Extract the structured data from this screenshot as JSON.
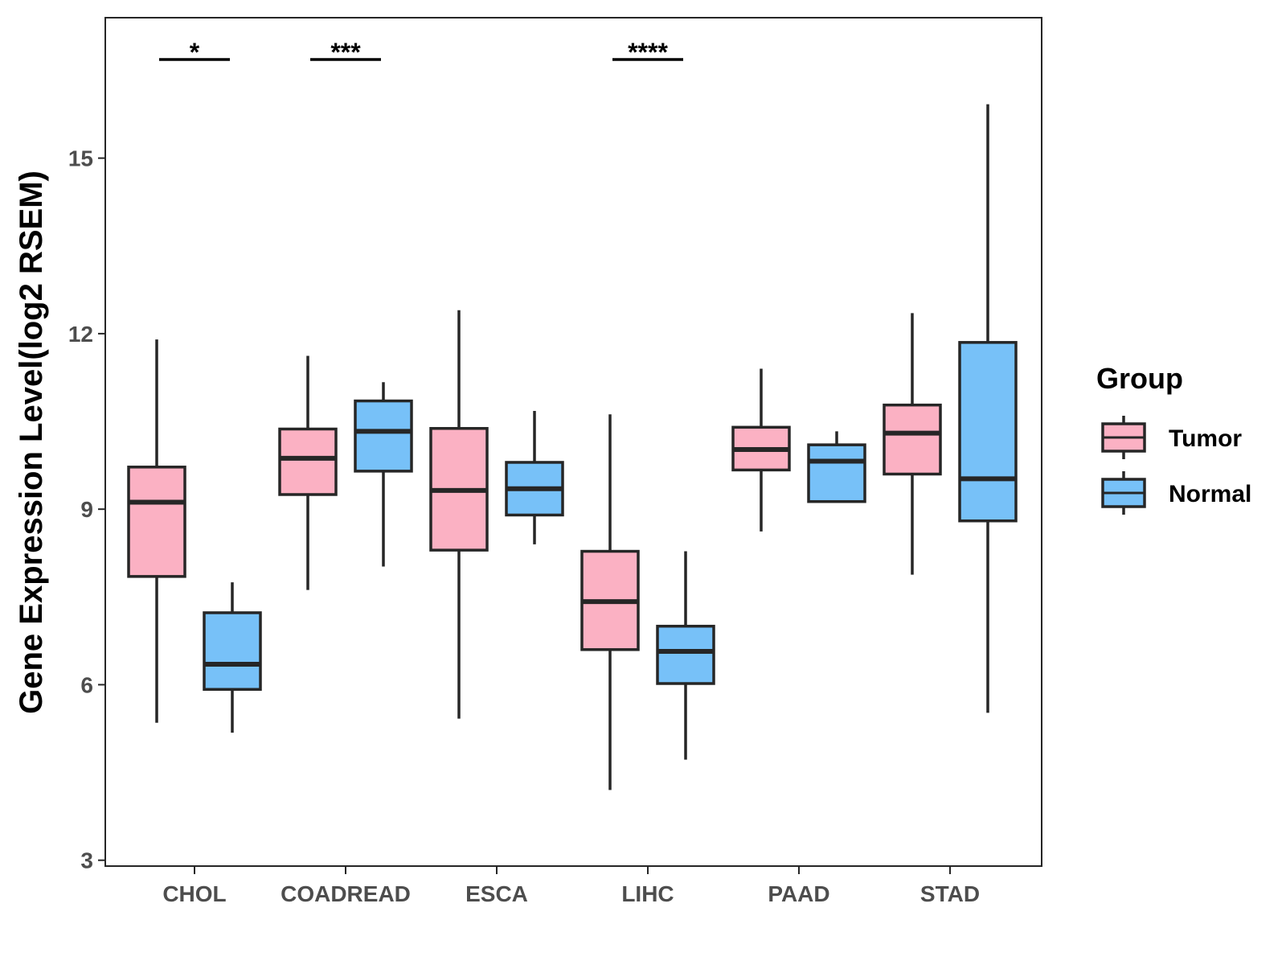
{
  "chart_data": {
    "type": "boxplot",
    "title": "",
    "xlabel": "",
    "ylabel": "Gene Expression Level(log2 RSEM)",
    "ylim": [
      2.9,
      17.4
    ],
    "yticks": [
      3,
      6,
      9,
      12,
      15
    ],
    "categories": [
      "CHOL",
      "COADREAD",
      "ESCA",
      "LIHC",
      "PAAD",
      "STAD"
    ],
    "legend": {
      "title": "Group",
      "position": "right",
      "entries": [
        "Tumor",
        "Normal"
      ]
    },
    "series": [
      {
        "name": "Tumor",
        "color": "#FBB1C3",
        "boxes": [
          {
            "category": "CHOL",
            "min": 5.35,
            "q1": 7.85,
            "median": 9.12,
            "q3": 9.72,
            "max": 11.9
          },
          {
            "category": "COADREAD",
            "min": 7.62,
            "q1": 9.25,
            "median": 9.87,
            "q3": 10.37,
            "max": 11.62
          },
          {
            "category": "ESCA",
            "min": 5.42,
            "q1": 8.3,
            "median": 9.32,
            "q3": 10.38,
            "max": 12.4
          },
          {
            "category": "LIHC",
            "min": 4.2,
            "q1": 6.6,
            "median": 7.42,
            "q3": 8.28,
            "max": 10.62
          },
          {
            "category": "PAAD",
            "min": 8.62,
            "q1": 9.67,
            "median": 10.02,
            "q3": 10.4,
            "max": 11.4
          },
          {
            "category": "STAD",
            "min": 7.88,
            "q1": 9.6,
            "median": 10.3,
            "q3": 10.78,
            "max": 12.35
          }
        ]
      },
      {
        "name": "Normal",
        "color": "#77C1F8",
        "boxes": [
          {
            "category": "CHOL",
            "min": 5.18,
            "q1": 5.92,
            "median": 6.35,
            "q3": 7.23,
            "max": 7.75
          },
          {
            "category": "COADREAD",
            "min": 8.02,
            "q1": 9.65,
            "median": 10.33,
            "q3": 10.85,
            "max": 11.17
          },
          {
            "category": "ESCA",
            "min": 8.4,
            "q1": 8.9,
            "median": 9.35,
            "q3": 9.8,
            "max": 10.68
          },
          {
            "category": "LIHC",
            "min": 4.72,
            "q1": 6.02,
            "median": 6.57,
            "q3": 7.0,
            "max": 8.28
          },
          {
            "category": "PAAD",
            "min": 9.13,
            "q1": 9.13,
            "median": 9.82,
            "q3": 10.1,
            "max": 10.33
          },
          {
            "category": "STAD",
            "min": 5.52,
            "q1": 8.8,
            "median": 9.52,
            "q3": 11.85,
            "max": 15.92
          }
        ]
      }
    ],
    "significance": [
      {
        "category": "CHOL",
        "label": "*"
      },
      {
        "category": "COADREAD",
        "label": "***"
      },
      {
        "category": "LIHC",
        "label": "****"
      }
    ]
  },
  "colors": {
    "tumor": "#FBB1C3",
    "normal": "#77C1F8",
    "outline": "#262626",
    "axis_text": "#4d4d4d"
  }
}
